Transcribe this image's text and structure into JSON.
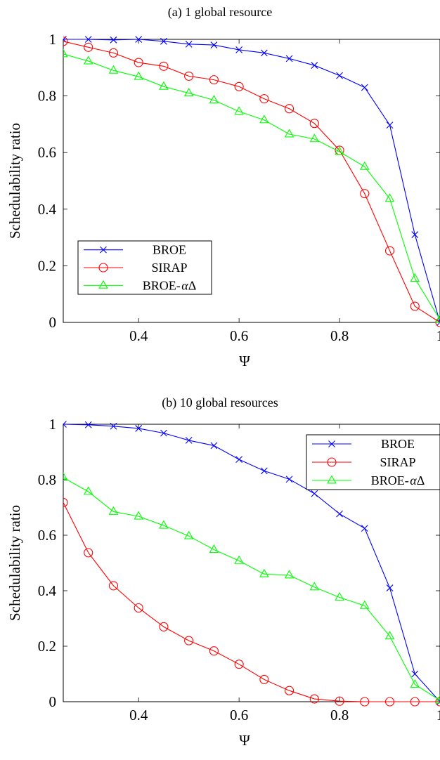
{
  "chart_data": [
    {
      "type": "line",
      "title": "(a) 1 global resource",
      "xlabel": "Ψ",
      "ylabel": "Schedulability ratio",
      "xlim": [
        0.25,
        1.0
      ],
      "ylim": [
        0,
        1
      ],
      "xticks": [
        0.4,
        0.6,
        0.8,
        1
      ],
      "xtick_labels": [
        "0.4",
        "0.6",
        "0.8",
        "1"
      ],
      "yticks": [
        0,
        0.2,
        0.4,
        0.6,
        0.8,
        1
      ],
      "ytick_labels": [
        "0",
        "0.2",
        "0.4",
        "0.6",
        "0.8",
        "1"
      ],
      "legend_position": "bottom-left",
      "x": [
        0.25,
        0.3,
        0.35,
        0.4,
        0.45,
        0.5,
        0.55,
        0.6,
        0.65,
        0.7,
        0.75,
        0.8,
        0.85,
        0.9,
        0.95,
        1.0
      ],
      "series": [
        {
          "name": "BROE",
          "color": "#0000ff",
          "marker": "x",
          "values": [
            1.0,
            1.0,
            0.998,
            1.0,
            0.993,
            0.983,
            0.98,
            0.963,
            0.952,
            0.932,
            0.908,
            0.872,
            0.83,
            0.697,
            0.31,
            0.0
          ]
        },
        {
          "name": "SIRAP",
          "color": "#ff0000",
          "marker": "circle",
          "values": [
            0.993,
            0.972,
            0.952,
            0.918,
            0.905,
            0.87,
            0.857,
            0.833,
            0.79,
            0.755,
            0.703,
            0.608,
            0.455,
            0.253,
            0.057,
            0.0
          ]
        },
        {
          "name": "BROE-αΔ",
          "color": "#00ff00",
          "marker": "triangle",
          "values": [
            0.948,
            0.923,
            0.89,
            0.868,
            0.833,
            0.81,
            0.785,
            0.745,
            0.715,
            0.665,
            0.648,
            0.603,
            0.55,
            0.437,
            0.155,
            0.01
          ]
        }
      ]
    },
    {
      "type": "line",
      "title": "(b) 10 global resources",
      "xlabel": "Ψ",
      "ylabel": "Schedulability ratio",
      "xlim": [
        0.25,
        1.0
      ],
      "ylim": [
        0,
        1
      ],
      "xticks": [
        0.4,
        0.6,
        0.8,
        1
      ],
      "xtick_labels": [
        "0.4",
        "0.6",
        "0.8",
        "1"
      ],
      "yticks": [
        0,
        0.2,
        0.4,
        0.6,
        0.8,
        1
      ],
      "ytick_labels": [
        "0",
        "0.2",
        "0.4",
        "0.6",
        "0.8",
        "1"
      ],
      "legend_position": "top-right",
      "x": [
        0.25,
        0.3,
        0.35,
        0.4,
        0.45,
        0.5,
        0.55,
        0.6,
        0.65,
        0.7,
        0.75,
        0.8,
        0.85,
        0.9,
        0.95,
        1.0
      ],
      "series": [
        {
          "name": "BROE",
          "color": "#0000ff",
          "marker": "x",
          "values": [
            1.0,
            0.998,
            0.993,
            0.985,
            0.968,
            0.942,
            0.923,
            0.873,
            0.832,
            0.802,
            0.75,
            0.677,
            0.625,
            0.41,
            0.1,
            0.0
          ]
        },
        {
          "name": "SIRAP",
          "color": "#ff0000",
          "marker": "circle",
          "values": [
            0.718,
            0.537,
            0.418,
            0.338,
            0.27,
            0.22,
            0.183,
            0.135,
            0.08,
            0.04,
            0.01,
            0.002,
            0.0,
            0.0,
            0.0,
            0.0
          ]
        },
        {
          "name": "BROE-αΔ",
          "color": "#00ff00",
          "marker": "triangle",
          "values": [
            0.808,
            0.757,
            0.685,
            0.668,
            0.635,
            0.597,
            0.548,
            0.508,
            0.46,
            0.456,
            0.413,
            0.376,
            0.346,
            0.236,
            0.062,
            0.005
          ]
        }
      ]
    }
  ]
}
